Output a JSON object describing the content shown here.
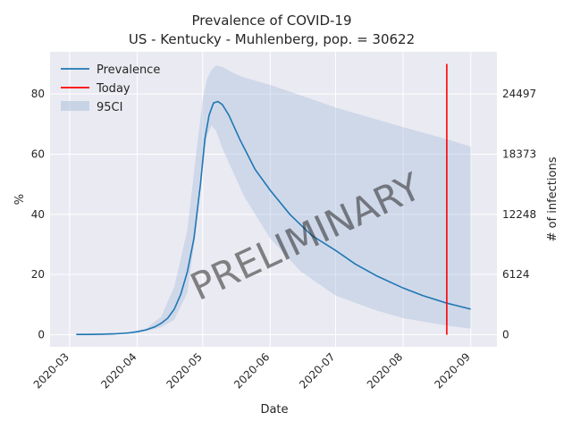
{
  "chart_data": {
    "type": "line",
    "title": "Prevalence of COVID-19",
    "subtitle": "US - Kentucky - Muhlenberg, pop. = 30622",
    "xlabel": "Date",
    "ylabel": "%",
    "ylabel_right": "# of infections",
    "watermark": "PRELIMINARY",
    "x_ticks": [
      "2020-03",
      "2020-04",
      "2020-05",
      "2020-06",
      "2020-07",
      "2020-08",
      "2020-09"
    ],
    "y_ticks": [
      "0",
      "20",
      "40",
      "60",
      "80"
    ],
    "y_ticks_right": [
      "0",
      "6124",
      "12248",
      "18373",
      "24497"
    ],
    "ylim": [
      -4,
      94
    ],
    "right_axis_scale": 306.22,
    "grid": true,
    "legend_position": "top-left",
    "legend": [
      "Prevalence",
      "Today",
      "95CI"
    ],
    "colors": {
      "prevalence": "#1f77b4",
      "today": "#ff0000",
      "ci": "#b0c4de",
      "background": "#eaeaf2"
    },
    "today": "2020-08-21",
    "today_line_y": [
      0,
      90
    ],
    "series": [
      {
        "name": "Prevalence",
        "x": [
          "2020-03-04",
          "2020-03-10",
          "2020-03-16",
          "2020-03-22",
          "2020-03-28",
          "2020-04-01",
          "2020-04-05",
          "2020-04-09",
          "2020-04-12",
          "2020-04-15",
          "2020-04-18",
          "2020-04-21",
          "2020-04-24",
          "2020-04-27",
          "2020-04-30",
          "2020-05-02",
          "2020-05-04",
          "2020-05-06",
          "2020-05-08",
          "2020-05-10",
          "2020-05-13",
          "2020-05-18",
          "2020-05-25",
          "2020-06-01",
          "2020-06-10",
          "2020-06-20",
          "2020-07-01",
          "2020-07-10",
          "2020-07-20",
          "2020-08-01",
          "2020-08-10",
          "2020-08-21",
          "2020-09-01"
        ],
        "values": [
          0.1,
          0.1,
          0.2,
          0.3,
          0.6,
          1.0,
          1.6,
          2.6,
          3.8,
          5.5,
          8.5,
          13.5,
          21.0,
          32.0,
          50.0,
          65.0,
          73.0,
          77.0,
          77.5,
          76.5,
          73.0,
          65.0,
          55.0,
          48.0,
          40.0,
          33.0,
          28.0,
          23.5,
          19.5,
          15.5,
          13.0,
          10.5,
          8.5
        ]
      },
      {
        "name": "95CI",
        "x": [
          "2020-03-04",
          "2020-03-28",
          "2020-04-05",
          "2020-04-12",
          "2020-04-18",
          "2020-04-24",
          "2020-04-28",
          "2020-05-01",
          "2020-05-03",
          "2020-05-05",
          "2020-05-07",
          "2020-05-10",
          "2020-05-15",
          "2020-05-20",
          "2020-06-01",
          "2020-06-15",
          "2020-07-01",
          "2020-07-20",
          "2020-08-01",
          "2020-08-21",
          "2020-09-01"
        ],
        "upper": [
          0.2,
          0.8,
          2.0,
          6.0,
          16.0,
          35.0,
          60.0,
          78.0,
          85.0,
          88.0,
          89.5,
          89.0,
          87.0,
          85.5,
          83.0,
          79.5,
          75.5,
          71.5,
          69.0,
          65.0,
          62.5
        ],
        "lower": [
          0.0,
          0.4,
          1.2,
          2.5,
          5.0,
          14.0,
          35.0,
          55.0,
          66.0,
          69.5,
          68.0,
          62.0,
          54.0,
          46.0,
          32.0,
          21.0,
          13.0,
          8.0,
          5.5,
          3.0,
          2.0
        ]
      }
    ]
  }
}
